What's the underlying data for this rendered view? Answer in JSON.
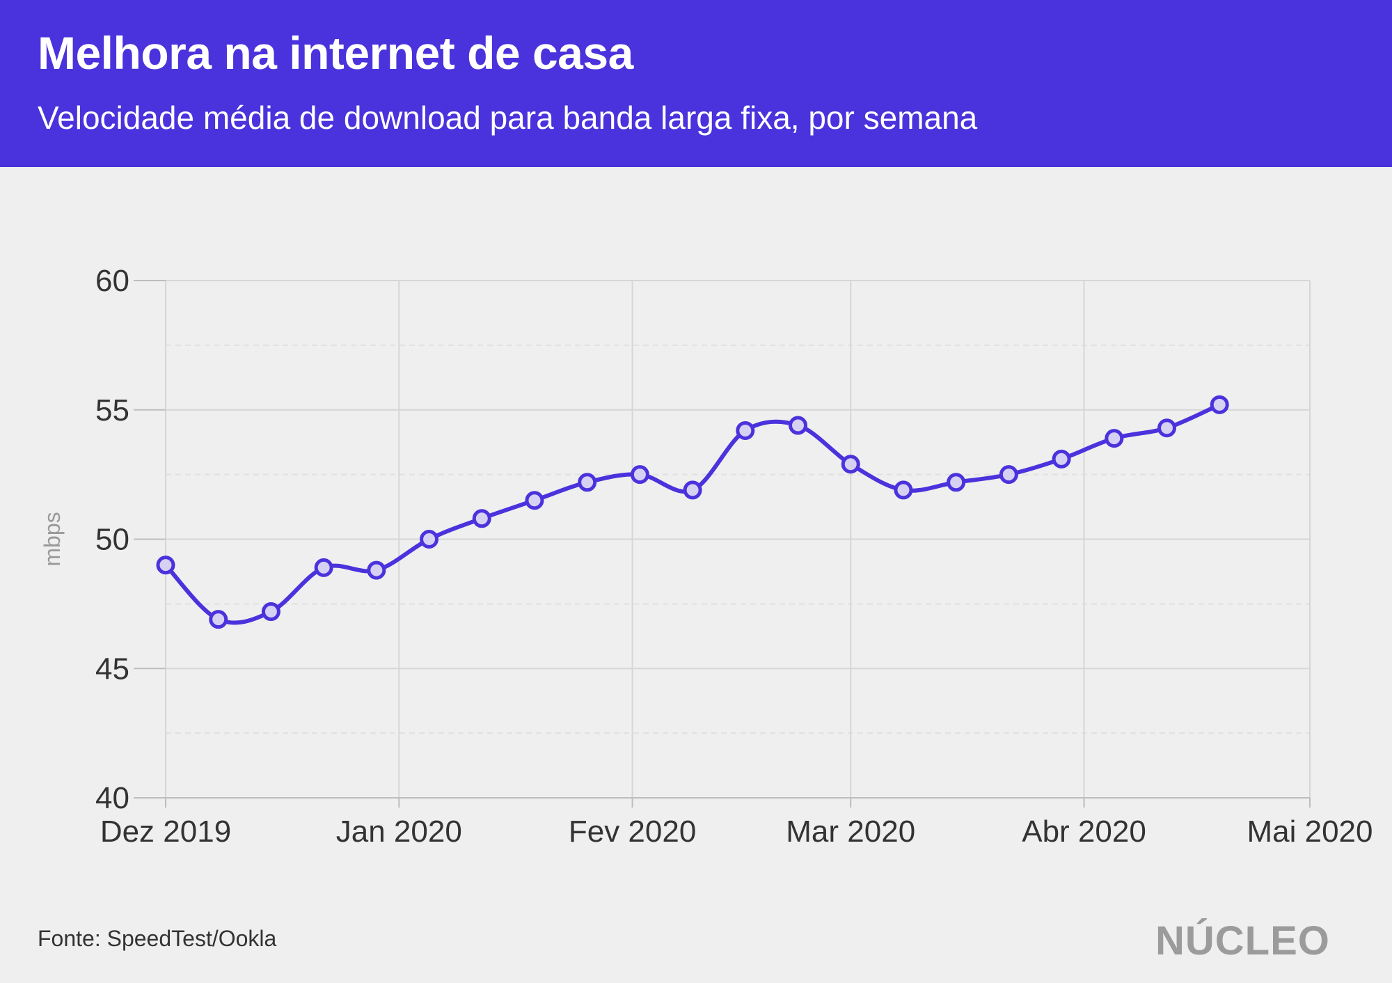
{
  "header": {
    "title": "Melhora na internet de casa",
    "subtitle": "Velocidade média de download para banda larga fixa, por semana"
  },
  "footer": {
    "source": "Fonte: SpeedTest/Ookla",
    "logo": "NÚCLEO"
  },
  "colors": {
    "header_bg": "#4a32dc",
    "line": "#4a32dc",
    "marker_fill": "#d6d0f3",
    "background": "#efefef"
  },
  "chart_data": {
    "type": "line",
    "title": "Melhora na internet de casa",
    "subtitle": "Velocidade média de download para banda larga fixa, por semana",
    "xlabel": "",
    "ylabel": "mbps",
    "ylim": [
      40,
      60
    ],
    "yticks": [
      40,
      45,
      50,
      55,
      60
    ],
    "xlim": [
      "2019-12-01",
      "2020-05-01"
    ],
    "xticks": [
      {
        "date": "2019-12-01",
        "label": "Dez 2019"
      },
      {
        "date": "2020-01-01",
        "label": "Jan 2020"
      },
      {
        "date": "2020-02-01",
        "label": "Fev 2020"
      },
      {
        "date": "2020-03-01",
        "label": "Mar 2020"
      },
      {
        "date": "2020-04-01",
        "label": "Abr 2020"
      },
      {
        "date": "2020-05-01",
        "label": "Mai 2020"
      }
    ],
    "grid": true,
    "legend": "none",
    "series": [
      {
        "x": [
          "2019-12-01",
          "2019-12-08",
          "2019-12-15",
          "2019-12-22",
          "2019-12-29",
          "2020-01-05",
          "2020-01-12",
          "2020-01-19",
          "2020-01-26",
          "2020-02-02",
          "2020-02-09",
          "2020-02-16",
          "2020-02-23",
          "2020-03-01",
          "2020-03-08",
          "2020-03-15",
          "2020-03-22",
          "2020-03-29",
          "2020-04-05",
          "2020-04-12",
          "2020-04-19"
        ],
        "values": [
          49.0,
          46.9,
          47.2,
          48.9,
          48.8,
          50.0,
          50.8,
          51.5,
          52.2,
          52.5,
          51.9,
          54.2,
          54.4,
          52.9,
          51.9,
          52.2,
          52.5,
          53.1,
          53.9,
          54.3,
          55.2
        ]
      }
    ]
  }
}
